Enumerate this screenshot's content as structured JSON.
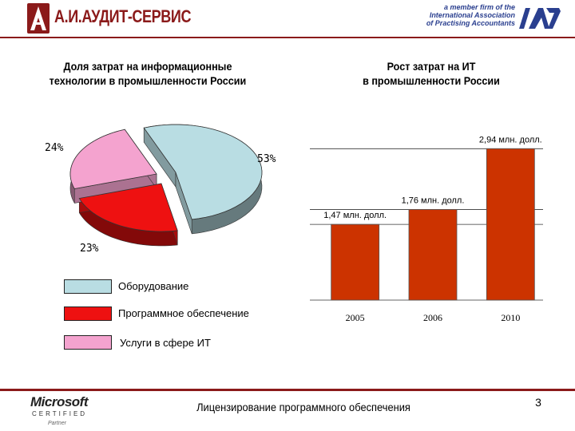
{
  "header": {
    "company_name": "А.И.АУДИТ-СЕРВИС",
    "member_lines": [
      "a member firm of the",
      "International Association",
      "of Practising Accountants"
    ],
    "iapa_mark": "IAPA"
  },
  "colors": {
    "brand": "#8b1a1a",
    "equipment": "#b9dde3",
    "software": "#ee1111",
    "services": "#f4a3cf",
    "bar": "#cc3300"
  },
  "chart_data": [
    {
      "type": "pie",
      "title": "Доля затрат на информационные технологии в промышленности России",
      "title_lines": [
        "Доля затрат на информационные",
        "технологии в промышленности России"
      ],
      "slices": [
        {
          "name": "Оборудование",
          "value": 53,
          "label": "53%"
        },
        {
          "name": "Программное обеспечение",
          "value": 23,
          "label": "23%"
        },
        {
          "name": "Услуги в сфере ИТ",
          "value": 24,
          "label": "24%"
        }
      ],
      "legend": [
        "Оборудование",
        "Программное обеспечение",
        "Услуги в сфере ИТ"
      ],
      "legend_placement": "bottom"
    },
    {
      "type": "bar",
      "title": "Рост затрат на ИТ в промышленности России",
      "title_lines": [
        "Рост затрат на ИТ",
        "в промышленности России"
      ],
      "categories": [
        "2005",
        "2006",
        "2010"
      ],
      "values": [
        1.47,
        1.76,
        2.94
      ],
      "data_labels": [
        "1,47 млн. долл.",
        "1,76 млн. долл.",
        "2,94 млн. долл."
      ],
      "ylim": [
        0,
        3.1
      ],
      "grid": true
    }
  ],
  "footer": {
    "text": "Лицензирование программного обеспечения",
    "page": "3",
    "ms_word": "Microsoft",
    "ms_certified": "CERTIFIED",
    "ms_partner": "Partner"
  }
}
